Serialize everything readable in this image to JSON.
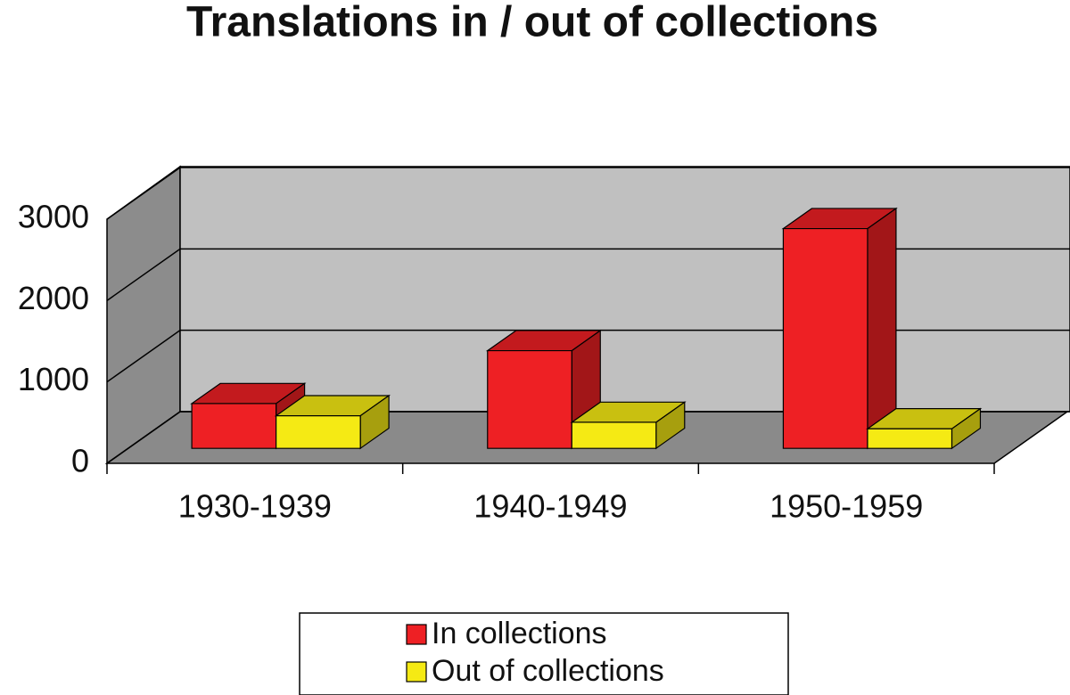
{
  "chart_data": {
    "type": "bar3d",
    "title": "Translations in / out of collections",
    "categories": [
      "1930-1939",
      "1940-1949",
      "1950-1959"
    ],
    "series": [
      {
        "name": "In collections",
        "color": "#ee2024",
        "values": [
          550,
          1200,
          2700
        ]
      },
      {
        "name": "Out of collections",
        "color": "#f5ea14",
        "values": [
          400,
          320,
          240
        ]
      }
    ],
    "ylim": [
      0,
      3000
    ],
    "yticks": [
      0,
      1000,
      2000,
      3000
    ],
    "grid": true
  }
}
